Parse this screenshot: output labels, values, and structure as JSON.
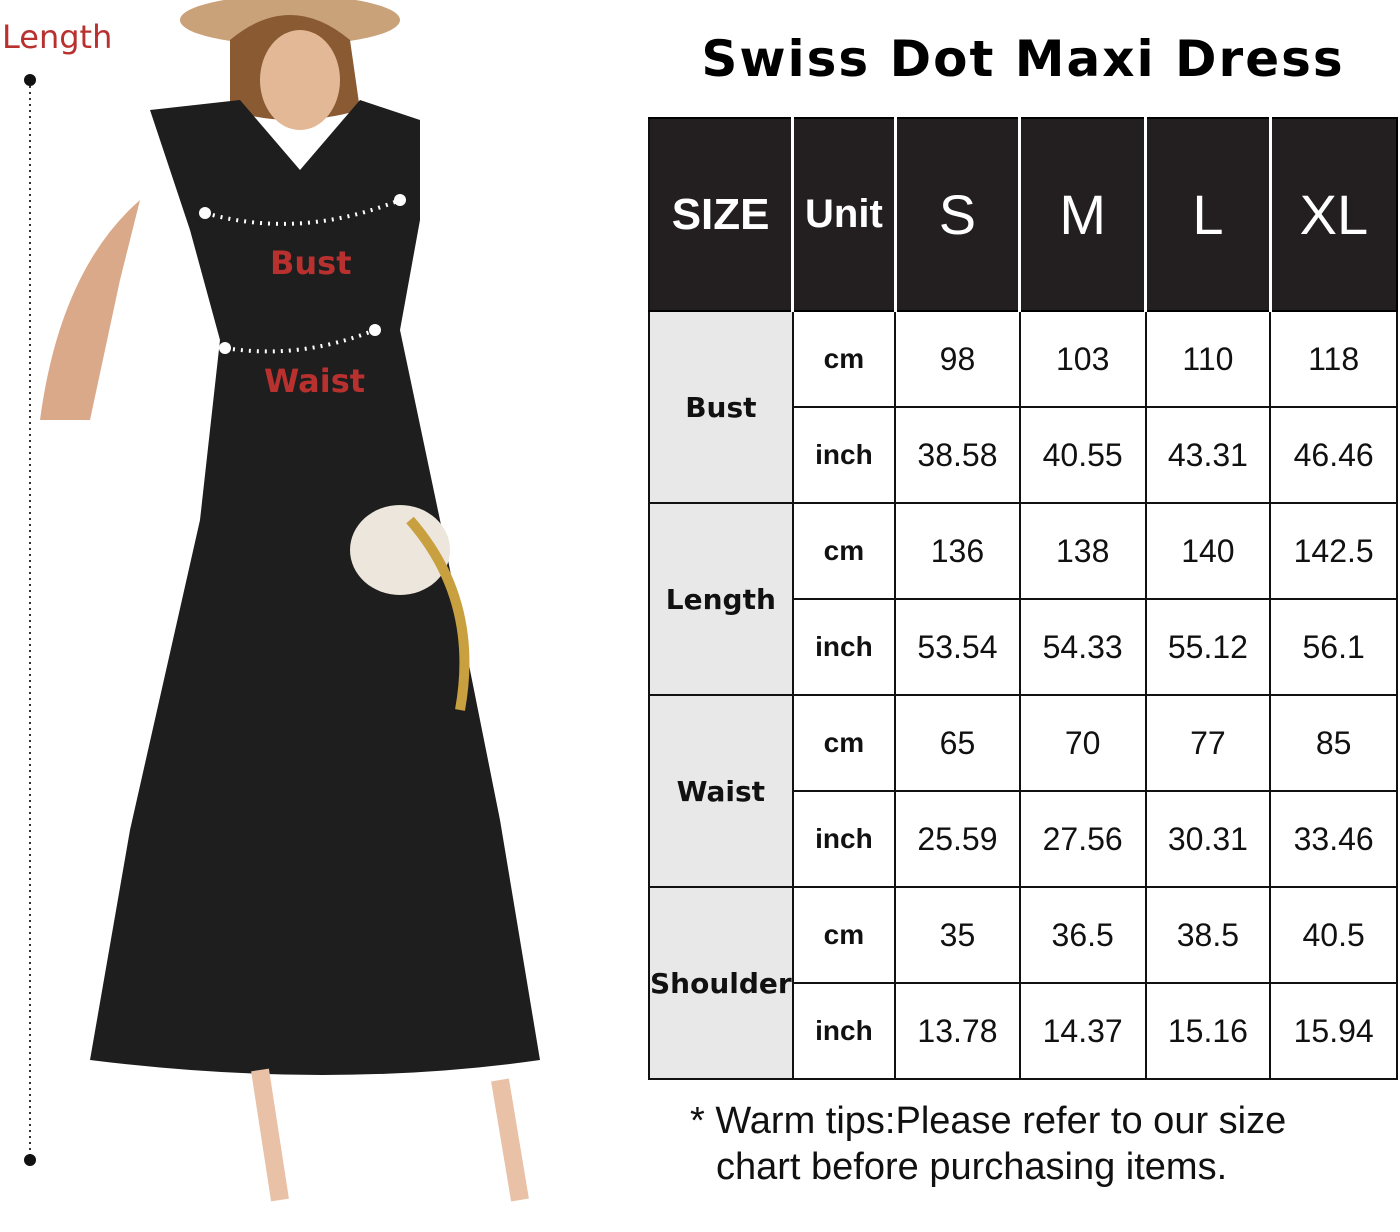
{
  "title": "Swiss Dot Maxi Dress",
  "labels": {
    "length": "Length",
    "bust": "Bust",
    "waist": "Waist"
  },
  "colors": {
    "label_red": "#b8312f",
    "header_bg": "#231f20",
    "measure_bg": "#e8e8e8"
  },
  "table": {
    "headers": [
      "SIZE",
      "Unit",
      "S",
      "M",
      "L",
      "XL"
    ],
    "rows": [
      {
        "measure": "Bust",
        "cm": [
          "98",
          "103",
          "110",
          "118"
        ],
        "inch": [
          "38.58",
          "40.55",
          "43.31",
          "46.46"
        ]
      },
      {
        "measure": "Length",
        "cm": [
          "136",
          "138",
          "140",
          "142.5"
        ],
        "inch": [
          "53.54",
          "54.33",
          "55.12",
          "56.1"
        ]
      },
      {
        "measure": "Waist",
        "cm": [
          "65",
          "70",
          "77",
          "85"
        ],
        "inch": [
          "25.59",
          "27.56",
          "30.31",
          "33.46"
        ]
      },
      {
        "measure": "Shoulder",
        "cm": [
          "35",
          "36.5",
          "38.5",
          "40.5"
        ],
        "inch": [
          "13.78",
          "14.37",
          "15.16",
          "15.94"
        ]
      }
    ],
    "unit_cm": "cm",
    "unit_inch": "inch"
  },
  "tips": {
    "line1": "* Warm tips:Please refer to our size",
    "line2": "chart before purchasing items."
  }
}
